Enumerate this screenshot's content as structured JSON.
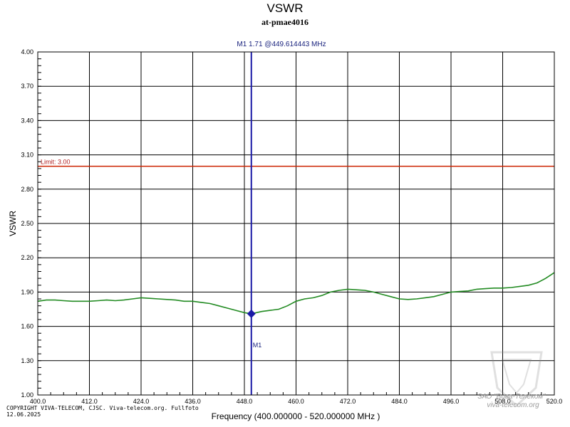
{
  "chart_data": {
    "type": "line",
    "title": "VSWR",
    "subtitle": "at-pmae4016",
    "xlabel": "Frequency (400.000000 - 520.000000 MHz )",
    "ylabel": "VSWR",
    "xlim": [
      400,
      520
    ],
    "ylim": [
      1.0,
      4.0
    ],
    "x_ticks": [
      "400.0",
      "412.0",
      "424.0",
      "436.0",
      "448.0",
      "460.0",
      "472.0",
      "484.0",
      "496.0",
      "508.0",
      "520.0"
    ],
    "y_ticks": [
      "1.00",
      "1.30",
      "1.60",
      "1.90",
      "2.20",
      "2.50",
      "2.80",
      "3.10",
      "3.40",
      "3.70",
      "4.00"
    ],
    "grid": true,
    "limit": {
      "label": "Limit: 3.00",
      "value": 3.0,
      "color": "#cc2200"
    },
    "marker": {
      "name": "M1",
      "readout": "M1   1.71 @449.614443 MHz",
      "x": 449.614443,
      "y": 1.71,
      "color": "#1a1aa6"
    },
    "series": [
      {
        "color": "#228b22",
        "x": [
          400,
          402,
          404,
          406,
          408,
          410,
          412,
          414,
          416,
          418,
          420,
          422,
          424,
          426,
          428,
          430,
          432,
          434,
          436,
          438,
          440,
          442,
          444,
          446,
          448,
          449.6,
          452,
          454,
          456,
          458,
          460,
          462,
          464,
          466,
          468,
          470,
          472,
          474,
          476,
          478,
          480,
          482,
          484,
          486,
          488,
          490,
          492,
          494,
          496,
          498,
          500,
          502,
          504,
          506,
          508,
          510,
          512,
          514,
          516,
          518,
          520
        ],
        "y": [
          1.82,
          1.83,
          1.83,
          1.825,
          1.82,
          1.82,
          1.82,
          1.825,
          1.83,
          1.825,
          1.83,
          1.84,
          1.85,
          1.845,
          1.84,
          1.835,
          1.83,
          1.82,
          1.82,
          1.81,
          1.8,
          1.78,
          1.76,
          1.74,
          1.72,
          1.71,
          1.73,
          1.74,
          1.75,
          1.78,
          1.82,
          1.84,
          1.85,
          1.87,
          1.9,
          1.915,
          1.925,
          1.92,
          1.915,
          1.9,
          1.88,
          1.86,
          1.84,
          1.835,
          1.84,
          1.85,
          1.86,
          1.88,
          1.9,
          1.905,
          1.91,
          1.925,
          1.93,
          1.935,
          1.935,
          1.94,
          1.95,
          1.96,
          1.98,
          2.02,
          2.07
        ]
      }
    ]
  },
  "footer": {
    "copyright_line1": "COPYRIGHT VIVA-TELECOM, CJSC. Viva-telecom.org. Fullfoto",
    "copyright_line2": "12.06.2025",
    "watermark_line1": "ЗАО \"Вива-Телеком\"",
    "watermark_line2": "viva-telecom.org"
  }
}
